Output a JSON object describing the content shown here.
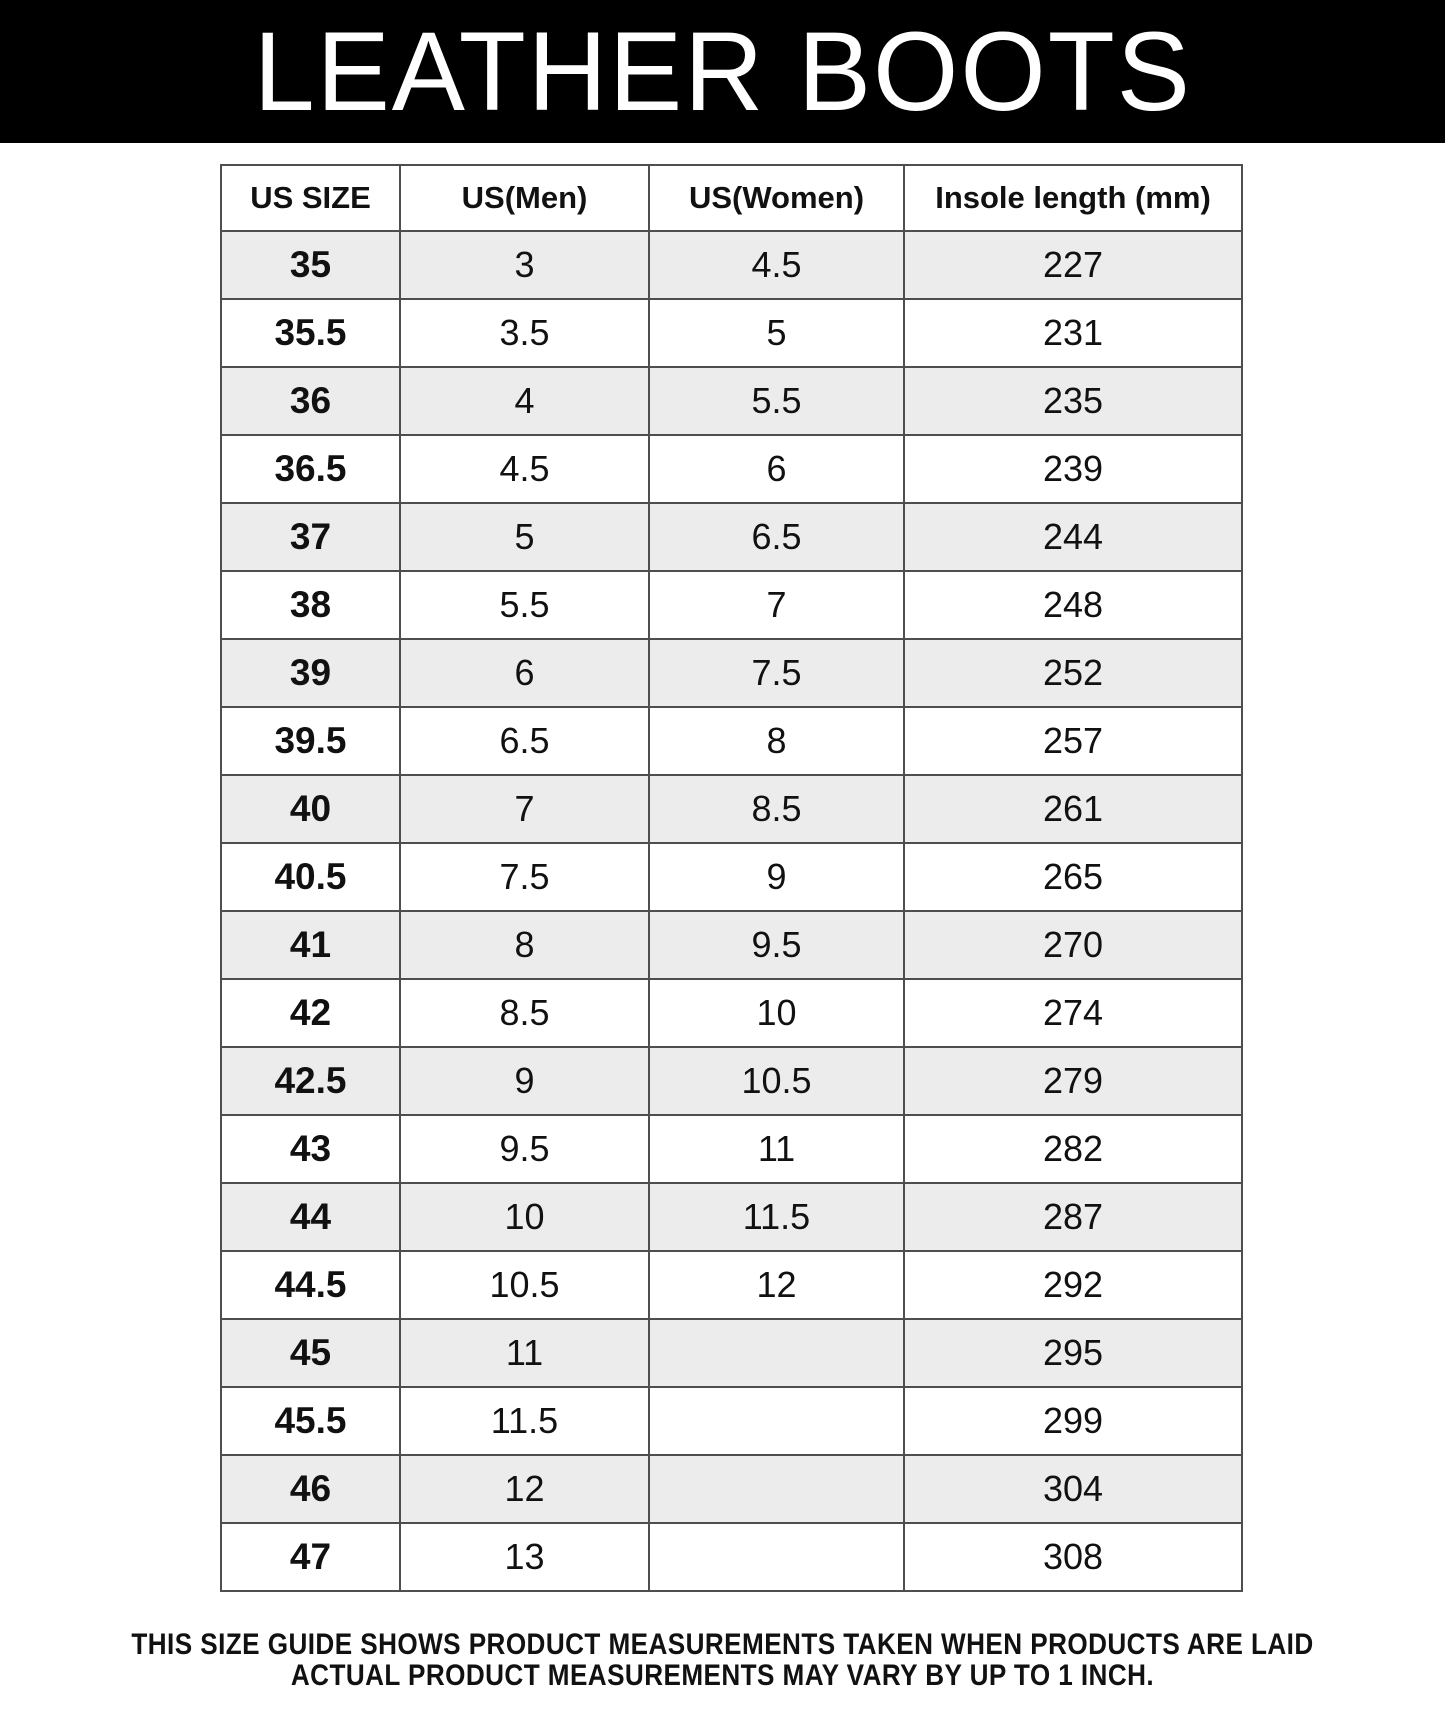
{
  "title": "LEATHER BOOTS",
  "table": {
    "headers": [
      "US SIZE",
      "US(Men)",
      "US(Women)",
      "Insole length (mm)"
    ],
    "rows": [
      [
        "35",
        "3",
        "4.5",
        "227"
      ],
      [
        "35.5",
        "3.5",
        "5",
        "231"
      ],
      [
        "36",
        "4",
        "5.5",
        "235"
      ],
      [
        "36.5",
        "4.5",
        "6",
        "239"
      ],
      [
        "37",
        "5",
        "6.5",
        "244"
      ],
      [
        "38",
        "5.5",
        "7",
        "248"
      ],
      [
        "39",
        "6",
        "7.5",
        "252"
      ],
      [
        "39.5",
        "6.5",
        "8",
        "257"
      ],
      [
        "40",
        "7",
        "8.5",
        "261"
      ],
      [
        "40.5",
        "7.5",
        "9",
        "265"
      ],
      [
        "41",
        "8",
        "9.5",
        "270"
      ],
      [
        "42",
        "8.5",
        "10",
        "274"
      ],
      [
        "42.5",
        "9",
        "10.5",
        "279"
      ],
      [
        "43",
        "9.5",
        "11",
        "282"
      ],
      [
        "44",
        "10",
        "11.5",
        "287"
      ],
      [
        "44.5",
        "10.5",
        "12",
        "292"
      ],
      [
        "45",
        "11",
        "",
        "295"
      ],
      [
        "45.5",
        "11.5",
        "",
        "299"
      ],
      [
        "46",
        "12",
        "",
        "304"
      ],
      [
        "47",
        "13",
        "",
        "308"
      ]
    ]
  },
  "footer": {
    "line1": "THIS SIZE GUIDE SHOWS PRODUCT MEASUREMENTS TAKEN WHEN PRODUCTS ARE LAID",
    "line2": "ACTUAL PRODUCT MEASUREMENTS MAY VARY BY UP TO 1 INCH."
  },
  "colors": {
    "banner_bg": "#000000",
    "title_text": "#ffffff",
    "row_shaded": "#ececec",
    "row_plain": "#ffffff",
    "border": "#4e4e4e",
    "text": "#111111"
  }
}
